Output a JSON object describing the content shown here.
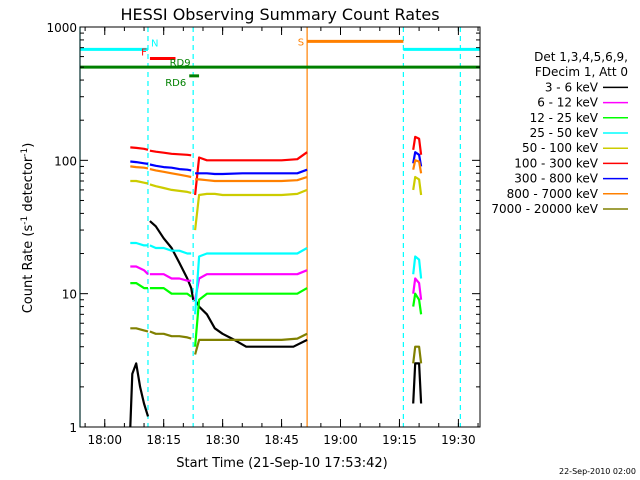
{
  "chart_data": {
    "type": "line",
    "title": "HESSI Observing Summary Count Rates",
    "xlabel": "Start Time (21-Sep-10 17:53:42)",
    "ylabel_main": "Count Rate (s",
    "ylabel_sup1": "-1",
    "ylabel_mid": " detector",
    "ylabel_sup2": "-1",
    "ylabel_end": ")",
    "y_scale": "log",
    "ylim": [
      1,
      1000
    ],
    "xlim_minutes": [
      -6.3,
      95.5
    ],
    "x_ticks": [
      {
        "label": "18:00",
        "minute": 0
      },
      {
        "label": "18:15",
        "minute": 15
      },
      {
        "label": "18:30",
        "minute": 30
      },
      {
        "label": "18:45",
        "minute": 45
      },
      {
        "label": "19:00",
        "minute": 60
      },
      {
        "label": "19:15",
        "minute": 75
      },
      {
        "label": "19:30",
        "minute": 90
      }
    ],
    "y_ticks": [
      {
        "label": "1",
        "value": 1
      },
      {
        "label": "10",
        "value": 10
      },
      {
        "label": "100",
        "value": 100
      },
      {
        "label": "1000",
        "value": 1000
      }
    ],
    "legend_placement": "right",
    "legend_header": [
      "Det 1,3,4,5,6,9,",
      "FDecim 1, Att 0"
    ],
    "series": [
      {
        "name": "3 - 6 keV",
        "color": "#000000",
        "segments": [
          [
            [
              6.5,
              1.0
            ],
            [
              7,
              2.5
            ],
            [
              8,
              3.0
            ],
            [
              9,
              2.0
            ],
            [
              10,
              1.5
            ],
            [
              11,
              1.2
            ]
          ],
          [
            [
              11.5,
              35
            ],
            [
              13,
              32
            ],
            [
              15,
              26
            ],
            [
              17,
              22
            ],
            [
              19,
              17
            ],
            [
              21,
              13
            ],
            [
              22,
              11
            ],
            [
              22.5,
              9
            ]
          ],
          [
            [
              23,
              9
            ],
            [
              24,
              8
            ],
            [
              26,
              7
            ],
            [
              28,
              5.5
            ],
            [
              30,
              5
            ],
            [
              33,
              4.5
            ],
            [
              36,
              4
            ],
            [
              40,
              4
            ],
            [
              44,
              4
            ],
            [
              48,
              4
            ],
            [
              51.5,
              4.5
            ]
          ],
          [
            [
              78.5,
              1.5
            ],
            [
              79,
              3
            ],
            [
              80,
              3
            ],
            [
              80.5,
              1.5
            ]
          ]
        ]
      },
      {
        "name": "6 - 12 keV",
        "color": "#ff00ff",
        "segments": [
          [
            [
              6.5,
              16
            ],
            [
              8,
              16
            ],
            [
              10,
              15
            ],
            [
              11,
              14
            ]
          ],
          [
            [
              11.5,
              14
            ],
            [
              13,
              14
            ],
            [
              15,
              14
            ],
            [
              17,
              13
            ],
            [
              19,
              13
            ],
            [
              21,
              12.5
            ],
            [
              22,
              12.5
            ]
          ],
          [
            [
              23,
              9
            ],
            [
              24,
              13
            ],
            [
              26,
              14
            ],
            [
              28,
              14
            ],
            [
              30,
              14
            ],
            [
              35,
              14
            ],
            [
              40,
              14
            ],
            [
              45,
              14
            ],
            [
              49,
              14
            ],
            [
              51.5,
              15
            ]
          ],
          [
            [
              78.5,
              10
            ],
            [
              79,
              13
            ],
            [
              80,
              12
            ],
            [
              80.5,
              9
            ]
          ]
        ]
      },
      {
        "name": "12 - 25 keV",
        "color": "#00ff00",
        "segments": [
          [
            [
              6.5,
              12
            ],
            [
              8,
              12
            ],
            [
              10,
              11
            ],
            [
              11,
              11
            ]
          ],
          [
            [
              11.5,
              11
            ],
            [
              13,
              11
            ],
            [
              15,
              11
            ],
            [
              17,
              10
            ],
            [
              19,
              10
            ],
            [
              21,
              10
            ],
            [
              22,
              9.5
            ]
          ],
          [
            [
              23,
              4
            ],
            [
              24,
              9
            ],
            [
              26,
              10
            ],
            [
              28,
              10
            ],
            [
              30,
              10
            ],
            [
              35,
              10
            ],
            [
              40,
              10
            ],
            [
              45,
              10
            ],
            [
              49,
              10
            ],
            [
              51.5,
              11
            ]
          ],
          [
            [
              78.5,
              8
            ],
            [
              79,
              10
            ],
            [
              80,
              9
            ],
            [
              80.5,
              7
            ]
          ]
        ]
      },
      {
        "name": "25 - 50 keV",
        "color": "#00ffff",
        "segments": [
          [
            [
              6.5,
              24
            ],
            [
              8,
              24
            ],
            [
              10,
              23
            ],
            [
              11,
              23
            ]
          ],
          [
            [
              11.5,
              23
            ],
            [
              13,
              22
            ],
            [
              15,
              22
            ],
            [
              17,
              21
            ],
            [
              19,
              21
            ],
            [
              21,
              20
            ],
            [
              22,
              20
            ]
          ],
          [
            [
              23,
              7
            ],
            [
              24,
              19
            ],
            [
              26,
              20
            ],
            [
              28,
              20
            ],
            [
              30,
              20
            ],
            [
              35,
              20
            ],
            [
              40,
              20
            ],
            [
              45,
              20
            ],
            [
              49,
              20
            ],
            [
              51.5,
              22
            ]
          ],
          [
            [
              78.5,
              14
            ],
            [
              79,
              19
            ],
            [
              80,
              18
            ],
            [
              80.5,
              13
            ]
          ]
        ]
      },
      {
        "name": "50 - 100 keV",
        "color": "#cccc00",
        "segments": [
          [
            [
              6.5,
              70
            ],
            [
              8,
              70
            ],
            [
              10,
              68
            ],
            [
              11,
              67
            ]
          ],
          [
            [
              11.5,
              66
            ],
            [
              13,
              64
            ],
            [
              15,
              62
            ],
            [
              17,
              60
            ],
            [
              19,
              59
            ],
            [
              21,
              58
            ],
            [
              22,
              57
            ]
          ],
          [
            [
              23,
              30
            ],
            [
              24,
              55
            ],
            [
              26,
              56
            ],
            [
              28,
              56
            ],
            [
              30,
              55
            ],
            [
              35,
              55
            ],
            [
              40,
              55
            ],
            [
              45,
              55
            ],
            [
              49,
              56
            ],
            [
              51.5,
              60
            ]
          ],
          [
            [
              78.5,
              60
            ],
            [
              79,
              75
            ],
            [
              80,
              72
            ],
            [
              80.5,
              55
            ]
          ]
        ]
      },
      {
        "name": "100 - 300 keV",
        "color": "#ff0000",
        "segments": [
          [
            [
              6.5,
              125
            ],
            [
              8,
              124
            ],
            [
              10,
              122
            ],
            [
              11,
              120
            ]
          ],
          [
            [
              11.5,
              118
            ],
            [
              13,
              116
            ],
            [
              15,
              114
            ],
            [
              17,
              112
            ],
            [
              19,
              111
            ],
            [
              21,
              110
            ],
            [
              22,
              109
            ]
          ],
          [
            [
              23,
              55
            ],
            [
              24,
              105
            ],
            [
              26,
              100
            ],
            [
              28,
              100
            ],
            [
              30,
              100
            ],
            [
              35,
              100
            ],
            [
              40,
              100
            ],
            [
              45,
              100
            ],
            [
              49,
              102
            ],
            [
              51.5,
              115
            ]
          ],
          [
            [
              78.5,
              120
            ],
            [
              79,
              150
            ],
            [
              80,
              145
            ],
            [
              80.5,
              110
            ]
          ]
        ]
      },
      {
        "name": "300 - 800 keV",
        "color": "#0000ff",
        "segments": [
          [
            [
              6.5,
              98
            ],
            [
              8,
              97
            ],
            [
              10,
              95
            ],
            [
              11,
              94
            ]
          ],
          [
            [
              11.5,
              93
            ],
            [
              13,
              91
            ],
            [
              15,
              89
            ],
            [
              17,
              88
            ],
            [
              19,
              86
            ],
            [
              21,
              85
            ],
            [
              22,
              84
            ]
          ],
          [
            [
              23,
              80
            ],
            [
              24,
              80
            ],
            [
              26,
              80
            ],
            [
              28,
              79
            ],
            [
              30,
              79
            ],
            [
              35,
              80
            ],
            [
              40,
              80
            ],
            [
              45,
              80
            ],
            [
              49,
              80
            ],
            [
              51.5,
              85
            ]
          ],
          [
            [
              78.5,
              95
            ],
            [
              79,
              115
            ],
            [
              80,
              110
            ],
            [
              80.5,
              90
            ]
          ]
        ]
      },
      {
        "name": "800 - 7000 keV",
        "color": "#ff8000",
        "segments": [
          [
            [
              6.5,
              90
            ],
            [
              8,
              89
            ],
            [
              10,
              88
            ],
            [
              11,
              87
            ]
          ],
          [
            [
              11.5,
              86
            ],
            [
              13,
              84
            ],
            [
              15,
              82
            ],
            [
              17,
              80
            ],
            [
              19,
              78
            ],
            [
              21,
              76
            ],
            [
              22,
              75
            ]
          ],
          [
            [
              23,
              72
            ],
            [
              24,
              72
            ],
            [
              26,
              71
            ],
            [
              28,
              70
            ],
            [
              30,
              70
            ],
            [
              35,
              70
            ],
            [
              40,
              70
            ],
            [
              45,
              70
            ],
            [
              49,
              71
            ],
            [
              51.5,
              75
            ]
          ],
          [
            [
              78.5,
              85
            ],
            [
              79,
              100
            ],
            [
              80,
              98
            ],
            [
              80.5,
              80
            ]
          ]
        ]
      },
      {
        "name": "7000 - 20000 keV",
        "color": "#808000",
        "segments": [
          [
            [
              6.5,
              5.5
            ],
            [
              8,
              5.5
            ],
            [
              10,
              5.3
            ],
            [
              11,
              5.2
            ]
          ],
          [
            [
              11.5,
              5.2
            ],
            [
              13,
              5.0
            ],
            [
              15,
              5.0
            ],
            [
              17,
              4.8
            ],
            [
              19,
              4.8
            ],
            [
              21,
              4.7
            ],
            [
              22,
              4.6
            ]
          ],
          [
            [
              23,
              3.5
            ],
            [
              24,
              4.5
            ],
            [
              26,
              4.5
            ],
            [
              28,
              4.5
            ],
            [
              30,
              4.5
            ],
            [
              35,
              4.5
            ],
            [
              40,
              4.5
            ],
            [
              45,
              4.5
            ],
            [
              49,
              4.6
            ],
            [
              51.5,
              5
            ]
          ],
          [
            [
              78.5,
              3
            ],
            [
              79,
              4
            ],
            [
              80,
              4
            ],
            [
              80.5,
              3
            ]
          ]
        ]
      }
    ],
    "annotations": [
      {
        "label": "N",
        "color": "#00ffff",
        "x_start": -6.3,
        "x_end": 11,
        "y": 680
      },
      {
        "label": "N",
        "color": "#00ffff",
        "x_start": 76,
        "x_end": 95.5,
        "y": 680
      },
      {
        "label": "F",
        "color": "#ff0000",
        "x_start": 11.5,
        "x_end": 18,
        "y": 580
      },
      {
        "label": "S",
        "color": "#ff8000",
        "x_start": 51.5,
        "x_end": 76,
        "y": 780
      },
      {
        "label": "RD6",
        "color": "#008000",
        "x_start": 21.5,
        "x_end": 24,
        "y": 430
      },
      {
        "label": "RD9",
        "color": "#008000",
        "x_start": -6.3,
        "x_end": 95.5,
        "y": 500
      }
    ],
    "vlines": [
      {
        "minute": -6.3,
        "color": "#00ffff",
        "style": "solid"
      },
      {
        "minute": 11,
        "color": "#00ffff",
        "style": "dashed"
      },
      {
        "minute": 22.5,
        "color": "#00ffff",
        "style": "dashed"
      },
      {
        "minute": 51.5,
        "color": "#ff8000",
        "style": "solid"
      },
      {
        "minute": 76,
        "color": "#00ffff",
        "style": "dashed"
      },
      {
        "minute": 90.5,
        "color": "#00ffff",
        "style": "dashed"
      }
    ]
  },
  "footer_date": "22-Sep-2010 02:00"
}
